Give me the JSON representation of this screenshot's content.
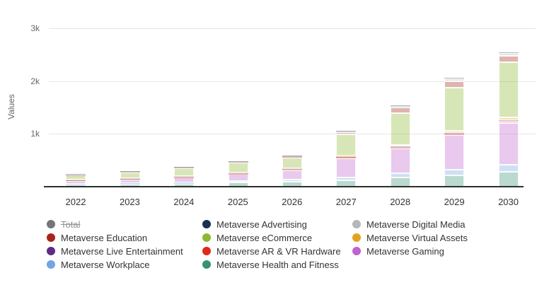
{
  "y_axis": {
    "title": "Values",
    "ticks": [
      {
        "label": "1k",
        "value": 1000
      },
      {
        "label": "2k",
        "value": 2000
      },
      {
        "label": "3k",
        "value": 3000
      }
    ]
  },
  "chart_data": {
    "type": "bar",
    "stacked": true,
    "title": "",
    "xlabel": "",
    "ylabel": "Values",
    "ylim": [
      0,
      3000
    ],
    "grid": true,
    "legend_position": "bottom",
    "categories": [
      "2022",
      "2023",
      "2024",
      "2025",
      "2026",
      "2027",
      "2028",
      "2029",
      "2030"
    ],
    "series": [
      {
        "name": "Total",
        "color": "#757575",
        "hidden": true,
        "values": []
      },
      {
        "name": "Metaverse Advertising",
        "color": "#17324d",
        "hidden": false,
        "values": [
          1,
          2,
          2,
          3,
          4,
          5,
          7,
          9,
          12
        ]
      },
      {
        "name": "Metaverse Digital Media",
        "color": "#b7b7b7",
        "hidden": false,
        "values": [
          5,
          6,
          8,
          10,
          14,
          18,
          27,
          55,
          60
        ]
      },
      {
        "name": "Metaverse Education",
        "color": "#a6251c",
        "hidden": false,
        "values": [
          10,
          12,
          15,
          18,
          25,
          40,
          110,
          120,
          120
        ]
      },
      {
        "name": "Metaverse eCommerce",
        "color": "#8cb82f",
        "hidden": false,
        "values": [
          75,
          110,
          150,
          180,
          195,
          400,
          600,
          810,
          1040
        ]
      },
      {
        "name": "Metaverse Virtual Assets",
        "color": "#e3a320",
        "hidden": false,
        "values": [
          8,
          10,
          13,
          17,
          22,
          28,
          35,
          45,
          55
        ]
      },
      {
        "name": "Metaverse Live Entertainment",
        "color": "#5f2b84",
        "hidden": false,
        "values": [
          3,
          4,
          5,
          6,
          8,
          10,
          13,
          16,
          20
        ]
      },
      {
        "name": "Metaverse AR & VR Hardware",
        "color": "#df2b1a",
        "hidden": false,
        "values": [
          4,
          5,
          7,
          10,
          14,
          18,
          22,
          27,
          32
        ]
      },
      {
        "name": "Metaverse Gaming",
        "color": "#bf63ce",
        "hidden": false,
        "values": [
          55,
          70,
          90,
          130,
          170,
          365,
          470,
          650,
          800
        ]
      },
      {
        "name": "Metaverse Workplace",
        "color": "#72a5e2",
        "hidden": false,
        "values": [
          15,
          20,
          25,
          30,
          40,
          55,
          80,
          110,
          125
        ]
      },
      {
        "name": "Metaverse Health and Fitness",
        "color": "#399175",
        "hidden": false,
        "values": [
          40,
          45,
          55,
          75,
          100,
          120,
          175,
          215,
          285
        ]
      }
    ],
    "stack_order_bottom_to_top": [
      "Metaverse Health and Fitness",
      "Metaverse Workplace",
      "Metaverse Gaming",
      "Metaverse AR & VR Hardware",
      "Metaverse Live Entertainment",
      "Metaverse Virtual Assets",
      "Metaverse eCommerce",
      "Metaverse Education",
      "Metaverse Digital Media",
      "Metaverse Advertising"
    ],
    "bar_fill_alpha": "59"
  },
  "legend": {
    "items_row_major": [
      {
        "label": "Total",
        "color": "#757575",
        "disabled": true
      },
      {
        "label": "Metaverse Advertising",
        "color": "#17324d",
        "disabled": false
      },
      {
        "label": "Metaverse Digital Media",
        "color": "#b7b7b7",
        "disabled": false
      },
      {
        "label": "Metaverse Education",
        "color": "#a6251c",
        "disabled": false
      },
      {
        "label": "Metaverse eCommerce",
        "color": "#8cb82f",
        "disabled": false
      },
      {
        "label": "Metaverse Virtual Assets",
        "color": "#e3a320",
        "disabled": false
      },
      {
        "label": "Metaverse Live Entertainment",
        "color": "#5f2b84",
        "disabled": false
      },
      {
        "label": "Metaverse AR & VR Hardware",
        "color": "#df2b1a",
        "disabled": false
      },
      {
        "label": "Metaverse Gaming",
        "color": "#bf63ce",
        "disabled": false
      },
      {
        "label": "Metaverse Workplace",
        "color": "#72a5e2",
        "disabled": false
      },
      {
        "label": "Metaverse Health and Fitness",
        "color": "#399175",
        "disabled": false
      }
    ]
  }
}
